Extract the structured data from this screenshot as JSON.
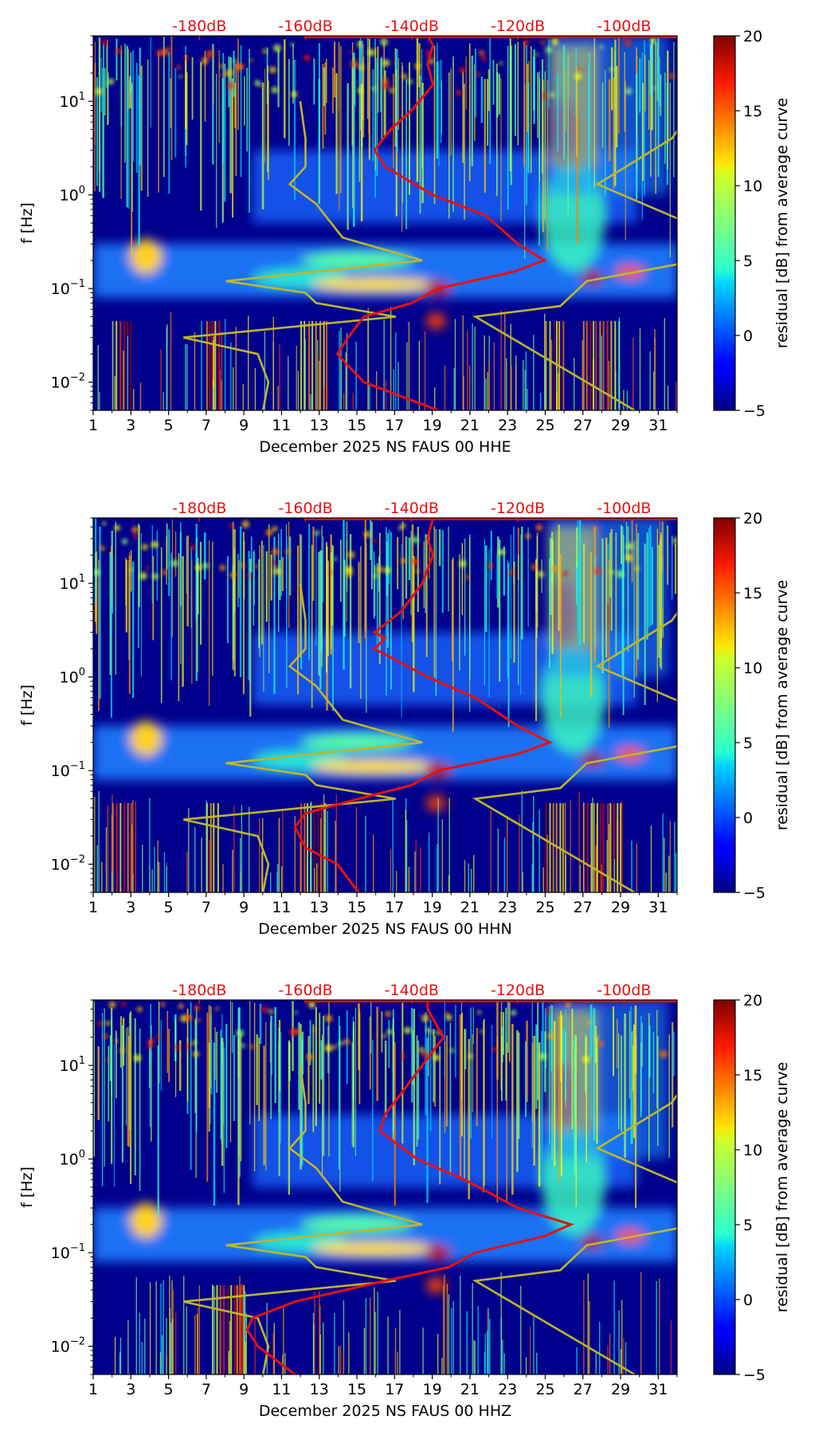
{
  "chart_data": [
    {
      "type": "heatmap",
      "panel": "HHE",
      "xlabel": "December 2025 NS FAUS 00 HHE",
      "ylabel": "f [Hz]",
      "x_ticks": [
        "1",
        "3",
        "5",
        "7",
        "9",
        "11",
        "13",
        "15",
        "17",
        "19",
        "21",
        "23",
        "25",
        "27",
        "29",
        "31"
      ],
      "x_range": [
        1,
        32
      ],
      "y_range_hz": [
        0.005,
        50
      ],
      "y_ticks": [
        "10^-2",
        "10^-1",
        "10^0",
        "10^1"
      ],
      "db_scale_labels": [
        "-180dB",
        "-160dB",
        "-140dB",
        "-120dB",
        "-100dB"
      ],
      "db_scale_range": [
        -200,
        -90
      ],
      "colorbar": {
        "label": "residual [dB] from average curve",
        "range": [
          -5,
          20
        ],
        "ticks": [
          "20",
          "15",
          "10",
          "5",
          "0",
          "−5"
        ]
      },
      "noise_model_curve_db": [
        [
          0.005,
          -168
        ],
        [
          0.01,
          -167
        ],
        [
          0.02,
          -169
        ],
        [
          0.03,
          -183
        ],
        [
          0.05,
          -143
        ],
        [
          0.07,
          -158
        ],
        [
          0.09,
          -160
        ],
        [
          0.12,
          -175
        ],
        [
          0.2,
          -138
        ],
        [
          0.35,
          -153
        ],
        [
          0.8,
          -158
        ],
        [
          1.3,
          -163
        ],
        [
          2,
          -160
        ],
        [
          4,
          -160
        ],
        [
          10,
          -161
        ]
      ],
      "average_curve_db": [
        [
          0.005,
          -135
        ],
        [
          0.01,
          -149
        ],
        [
          0.015,
          -152
        ],
        [
          0.02,
          -154
        ],
        [
          0.03,
          -152
        ],
        [
          0.05,
          -149
        ],
        [
          0.07,
          -140
        ],
        [
          0.1,
          -135
        ],
        [
          0.15,
          -121
        ],
        [
          0.2,
          -115
        ],
        [
          0.3,
          -120
        ],
        [
          0.6,
          -126
        ],
        [
          1,
          -136
        ],
        [
          2,
          -145
        ],
        [
          3,
          -147
        ],
        [
          5,
          -144
        ],
        [
          8,
          -140
        ],
        [
          15,
          -136
        ],
        [
          25,
          -137
        ],
        [
          40,
          -136
        ],
        [
          50,
          -137
        ]
      ]
    },
    {
      "type": "heatmap",
      "panel": "HHN",
      "xlabel": "December 2025 NS FAUS 00 HHN",
      "ylabel": "f [Hz]",
      "x_ticks": [
        "1",
        "3",
        "5",
        "7",
        "9",
        "11",
        "13",
        "15",
        "17",
        "19",
        "21",
        "23",
        "25",
        "27",
        "29",
        "31"
      ],
      "x_range": [
        1,
        32
      ],
      "y_range_hz": [
        0.005,
        50
      ],
      "y_ticks": [
        "10^-2",
        "10^-1",
        "10^0",
        "10^1"
      ],
      "db_scale_labels": [
        "-180dB",
        "-160dB",
        "-140dB",
        "-120dB",
        "-100dB"
      ],
      "db_scale_range": [
        -200,
        -90
      ],
      "colorbar": {
        "label": "residual [dB] from average curve",
        "range": [
          -5,
          20
        ],
        "ticks": [
          "20",
          "15",
          "10",
          "5",
          "0",
          "−5"
        ]
      },
      "noise_model_curve_db": [
        [
          0.005,
          -168
        ],
        [
          0.01,
          -167
        ],
        [
          0.02,
          -169
        ],
        [
          0.03,
          -183
        ],
        [
          0.05,
          -143
        ],
        [
          0.07,
          -158
        ],
        [
          0.09,
          -160
        ],
        [
          0.12,
          -175
        ],
        [
          0.2,
          -138
        ],
        [
          0.35,
          -153
        ],
        [
          0.8,
          -158
        ],
        [
          1.3,
          -163
        ],
        [
          2,
          -160
        ],
        [
          4,
          -160
        ],
        [
          10,
          -161
        ]
      ],
      "average_curve_db": [
        [
          0.005,
          -150
        ],
        [
          0.01,
          -154
        ],
        [
          0.015,
          -160
        ],
        [
          0.025,
          -162
        ],
        [
          0.035,
          -160
        ],
        [
          0.05,
          -150
        ],
        [
          0.07,
          -140
        ],
        [
          0.1,
          -135
        ],
        [
          0.15,
          -120
        ],
        [
          0.2,
          -114
        ],
        [
          0.3,
          -120
        ],
        [
          0.6,
          -128
        ],
        [
          1,
          -137
        ],
        [
          2,
          -147
        ],
        [
          2.6,
          -145
        ],
        [
          3,
          -147
        ],
        [
          5,
          -142
        ],
        [
          10,
          -138
        ],
        [
          20,
          -136
        ],
        [
          30,
          -137
        ],
        [
          50,
          -136
        ]
      ]
    },
    {
      "type": "heatmap",
      "panel": "HHZ",
      "xlabel": "December 2025 NS FAUS 00 HHZ",
      "ylabel": "f [Hz]",
      "x_ticks": [
        "1",
        "3",
        "5",
        "7",
        "9",
        "11",
        "13",
        "15",
        "17",
        "19",
        "21",
        "23",
        "25",
        "27",
        "29",
        "31"
      ],
      "x_range": [
        1,
        32
      ],
      "y_range_hz": [
        0.005,
        50
      ],
      "y_ticks": [
        "10^-2",
        "10^-1",
        "10^0",
        "10^1"
      ],
      "db_scale_labels": [
        "-180dB",
        "-160dB",
        "-140dB",
        "-120dB",
        "-100dB"
      ],
      "db_scale_range": [
        -200,
        -90
      ],
      "colorbar": {
        "label": "residual [dB] from average curve",
        "range": [
          -5,
          20
        ],
        "ticks": [
          "20",
          "15",
          "10",
          "5",
          "0",
          "−5"
        ]
      },
      "noise_model_curve_db": [
        [
          0.005,
          -168
        ],
        [
          0.01,
          -167
        ],
        [
          0.02,
          -169
        ],
        [
          0.03,
          -183
        ],
        [
          0.05,
          -143
        ],
        [
          0.07,
          -158
        ],
        [
          0.09,
          -160
        ],
        [
          0.12,
          -175
        ],
        [
          0.2,
          -138
        ],
        [
          0.35,
          -153
        ],
        [
          0.8,
          -158
        ],
        [
          1.3,
          -163
        ],
        [
          2,
          -160
        ],
        [
          4,
          -160
        ],
        [
          10,
          -161
        ]
      ],
      "average_curve_db": [
        [
          0.005,
          -162
        ],
        [
          0.01,
          -169
        ],
        [
          0.015,
          -171
        ],
        [
          0.02,
          -170
        ],
        [
          0.03,
          -162
        ],
        [
          0.05,
          -145
        ],
        [
          0.07,
          -133
        ],
        [
          0.1,
          -128
        ],
        [
          0.15,
          -115
        ],
        [
          0.2,
          -110
        ],
        [
          0.3,
          -120
        ],
        [
          0.6,
          -130
        ],
        [
          1,
          -139
        ],
        [
          2,
          -146
        ],
        [
          3,
          -145
        ],
        [
          5,
          -142
        ],
        [
          10,
          -138
        ],
        [
          20,
          -134
        ],
        [
          25,
          -135
        ],
        [
          40,
          -137
        ],
        [
          50,
          -137
        ]
      ]
    }
  ]
}
